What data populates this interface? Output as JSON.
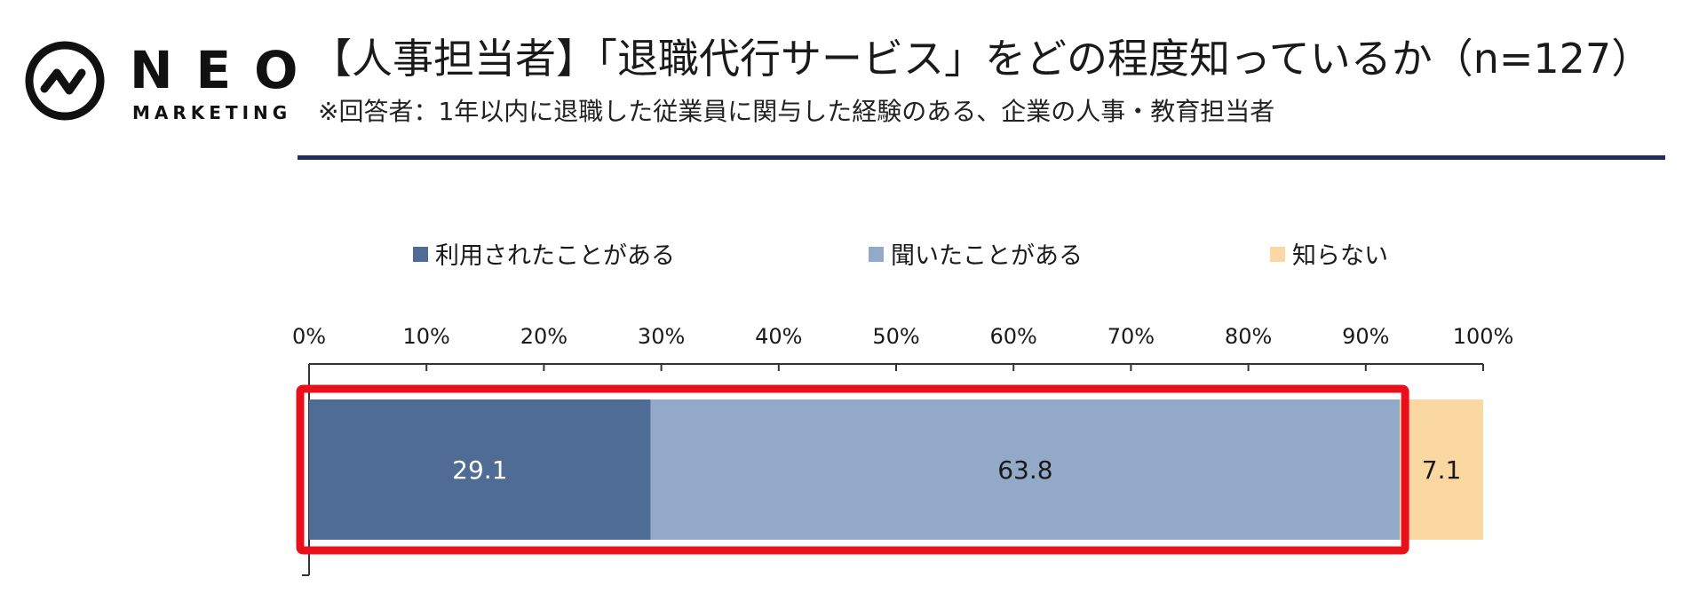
{
  "logo": {
    "word": "NEO",
    "sub": "MARKETING"
  },
  "header": {
    "title": "【人事担当者】「退職代行サービス」をどの程度知っているか（n=127）",
    "subtitle": "※回答者：1年以内に退職した従業員に関与した経験のある、企業の人事・教育担当者"
  },
  "chart_data": {
    "type": "bar",
    "orientation": "horizontal",
    "stacked": true,
    "categories": [
      ""
    ],
    "series": [
      {
        "name": "利用されたことがある",
        "values": [
          29.1
        ],
        "color": "#4f6c95",
        "label_color": "#ffffff"
      },
      {
        "name": "聞いたことがある",
        "values": [
          63.8
        ],
        "color": "#93a9c8",
        "label_color": "#1a1a1a"
      },
      {
        "name": "知らない",
        "values": [
          7.1
        ],
        "color": "#fbd8a2",
        "label_color": "#1a1a1a"
      }
    ],
    "xlim": [
      0,
      100
    ],
    "xticks": [
      "0%",
      "10%",
      "20%",
      "30%",
      "40%",
      "50%",
      "60%",
      "70%",
      "80%",
      "90%",
      "100%"
    ],
    "legend_position": "top",
    "highlight": {
      "color": "#e8101a",
      "covers_series": [
        "利用されたことがある",
        "聞いたことがある"
      ]
    }
  }
}
